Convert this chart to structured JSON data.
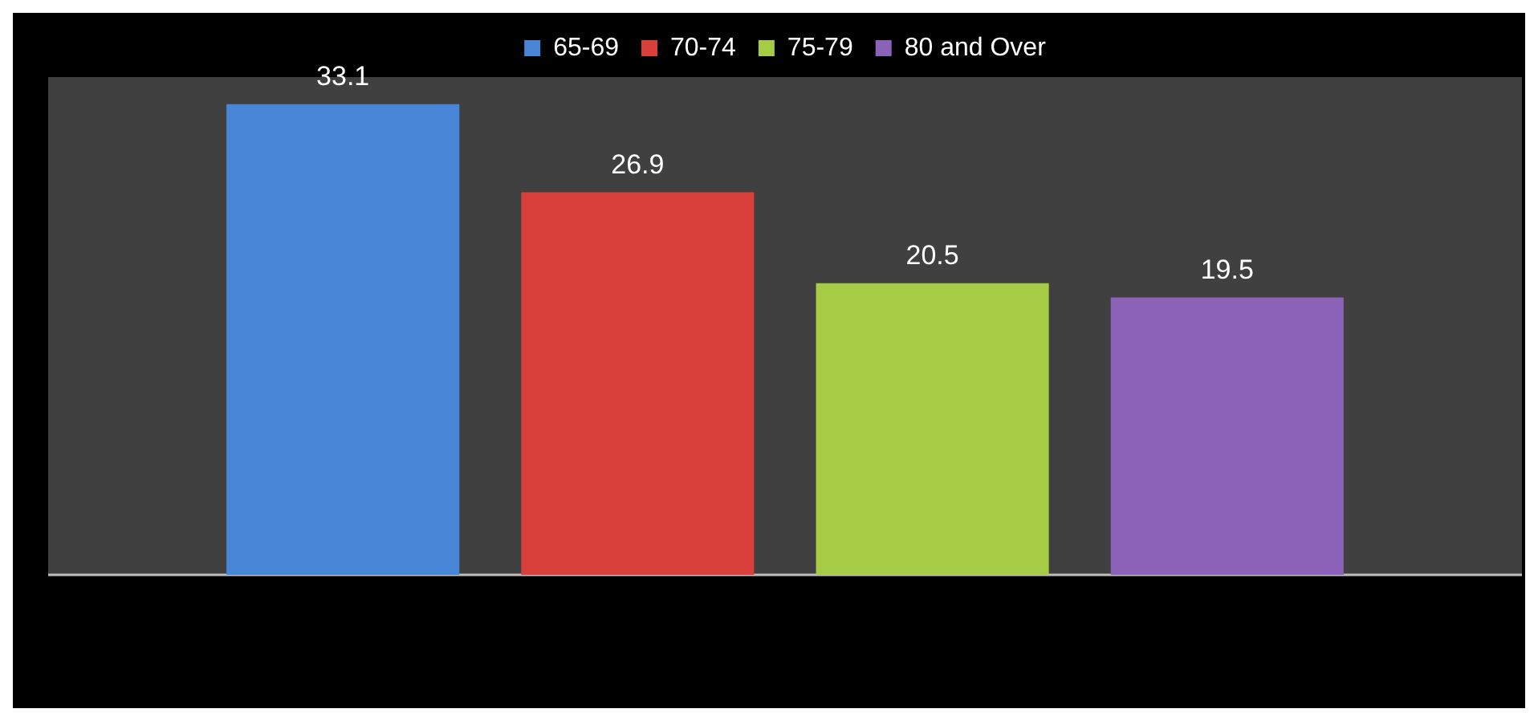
{
  "chart_data": {
    "type": "bar",
    "categories": [
      null
    ],
    "series": [
      {
        "name": "65-69",
        "color": "#4a86d8",
        "values": [
          33.1
        ]
      },
      {
        "name": "70-74",
        "color": "#d9403c",
        "values": [
          26.9
        ]
      },
      {
        "name": "75-79",
        "color": "#a6cb45",
        "values": [
          20.5
        ]
      },
      {
        "name": "80 and Over",
        "color": "#8a62b8",
        "values": [
          19.5
        ]
      }
    ],
    "ylim": [
      0,
      35
    ],
    "data_labels": true,
    "legend": "top",
    "grid": false
  }
}
